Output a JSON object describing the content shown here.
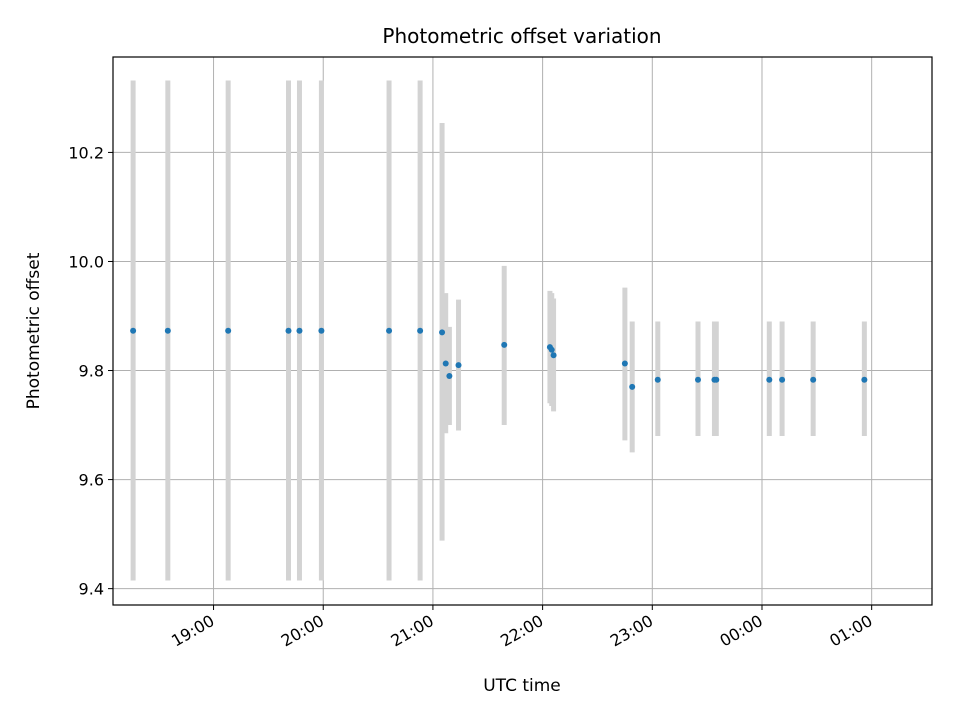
{
  "chart_data": {
    "type": "scatter",
    "title": "Photometric offset variation",
    "xlabel": "UTC time",
    "ylabel": "Photometric offset",
    "grid": true,
    "marker_color": "#1f77b4",
    "errorbar_color": "#d3d3d3",
    "x_axis": {
      "kind": "time",
      "range": [
        "18:05",
        "01:33"
      ],
      "ticks": [
        "19:00",
        "20:00",
        "21:00",
        "22:00",
        "23:00",
        "00:00",
        "01:00"
      ],
      "tick_labels": [
        "19:00",
        "20:00",
        "21:00",
        "22:00",
        "23:00",
        "00:00",
        "01:00"
      ]
    },
    "y_axis": {
      "range": [
        9.37,
        10.375
      ],
      "ticks": [
        9.4,
        9.6,
        9.8,
        10.0,
        10.2
      ],
      "tick_labels": [
        "9.4",
        "9.6",
        "9.8",
        "10.0",
        "10.2"
      ]
    },
    "points": [
      {
        "t": "18:16",
        "y": 9.873,
        "lo": 9.415,
        "hi": 10.332
      },
      {
        "t": "18:35",
        "y": 9.873,
        "lo": 9.415,
        "hi": 10.332
      },
      {
        "t": "19:08",
        "y": 9.873,
        "lo": 9.415,
        "hi": 10.332
      },
      {
        "t": "19:41",
        "y": 9.873,
        "lo": 9.415,
        "hi": 10.332
      },
      {
        "t": "19:47",
        "y": 9.873,
        "lo": 9.415,
        "hi": 10.332
      },
      {
        "t": "19:59",
        "y": 9.873,
        "lo": 9.415,
        "hi": 10.332
      },
      {
        "t": "20:36",
        "y": 9.873,
        "lo": 9.415,
        "hi": 10.332
      },
      {
        "t": "20:53",
        "y": 9.873,
        "lo": 9.415,
        "hi": 10.332
      },
      {
        "t": "21:05",
        "y": 9.87,
        "lo": 9.488,
        "hi": 10.254
      },
      {
        "t": "21:07",
        "y": 9.813,
        "lo": 9.685,
        "hi": 9.942
      },
      {
        "t": "21:09",
        "y": 9.79,
        "lo": 9.7,
        "hi": 9.88
      },
      {
        "t": "21:14",
        "y": 9.81,
        "lo": 9.69,
        "hi": 9.93
      },
      {
        "t": "21:39",
        "y": 9.847,
        "lo": 9.7,
        "hi": 9.992
      },
      {
        "t": "22:04",
        "y": 9.843,
        "lo": 9.74,
        "hi": 9.946
      },
      {
        "t": "22:05",
        "y": 9.838,
        "lo": 9.735,
        "hi": 9.942
      },
      {
        "t": "22:06",
        "y": 9.828,
        "lo": 9.725,
        "hi": 9.932
      },
      {
        "t": "22:45",
        "y": 9.813,
        "lo": 9.672,
        "hi": 9.952
      },
      {
        "t": "22:49",
        "y": 9.77,
        "lo": 9.65,
        "hi": 9.89
      },
      {
        "t": "23:03",
        "y": 9.783,
        "lo": 9.68,
        "hi": 9.89
      },
      {
        "t": "23:25",
        "y": 9.783,
        "lo": 9.68,
        "hi": 9.89
      },
      {
        "t": "23:34",
        "y": 9.783,
        "lo": 9.68,
        "hi": 9.89
      },
      {
        "t": "23:35",
        "y": 9.783,
        "lo": 9.68,
        "hi": 9.89
      },
      {
        "t": "00:04",
        "y": 9.783,
        "lo": 9.68,
        "hi": 9.89
      },
      {
        "t": "00:11",
        "y": 9.783,
        "lo": 9.68,
        "hi": 9.89
      },
      {
        "t": "00:28",
        "y": 9.783,
        "lo": 9.68,
        "hi": 9.89
      },
      {
        "t": "00:56",
        "y": 9.783,
        "lo": 9.68,
        "hi": 9.89
      }
    ]
  }
}
